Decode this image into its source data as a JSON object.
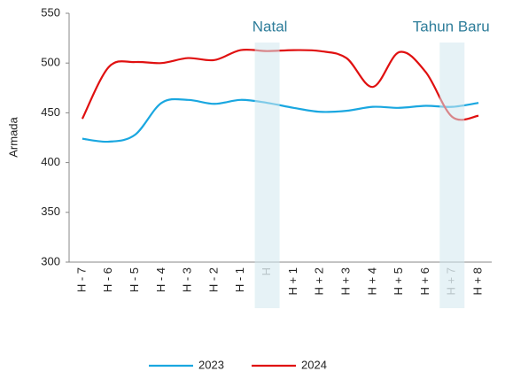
{
  "chart_data": {
    "type": "line",
    "y_label": "Armada",
    "categories": [
      "H - 7",
      "H - 6",
      "H - 5",
      "H - 4",
      "H - 3",
      "H - 2",
      "H - 1",
      "H",
      "H + 1",
      "H + 2",
      "H + 3",
      "H + 4",
      "H + 5",
      "H + 6",
      "H + 7",
      "H + 8"
    ],
    "series": [
      {
        "name": "2023",
        "color": "#1aa7e0",
        "values": [
          424,
          421,
          428,
          460,
          463,
          459,
          463,
          460,
          455,
          451,
          452,
          456,
          455,
          457,
          456,
          460
        ]
      },
      {
        "name": "2024",
        "color": "#e01010",
        "values": [
          444,
          496,
          501,
          500,
          505,
          503,
          513,
          512,
          513,
          512,
          505,
          476,
          511,
          491,
          446,
          447
        ]
      }
    ],
    "annotations": [
      {
        "label": "Natal",
        "at": "H"
      },
      {
        "label": "Tahun Baru",
        "at": "H + 7"
      }
    ],
    "ylim": [
      300,
      550
    ],
    "yticks": [
      300,
      350,
      400,
      450,
      500,
      550
    ],
    "legend": "bottom"
  }
}
